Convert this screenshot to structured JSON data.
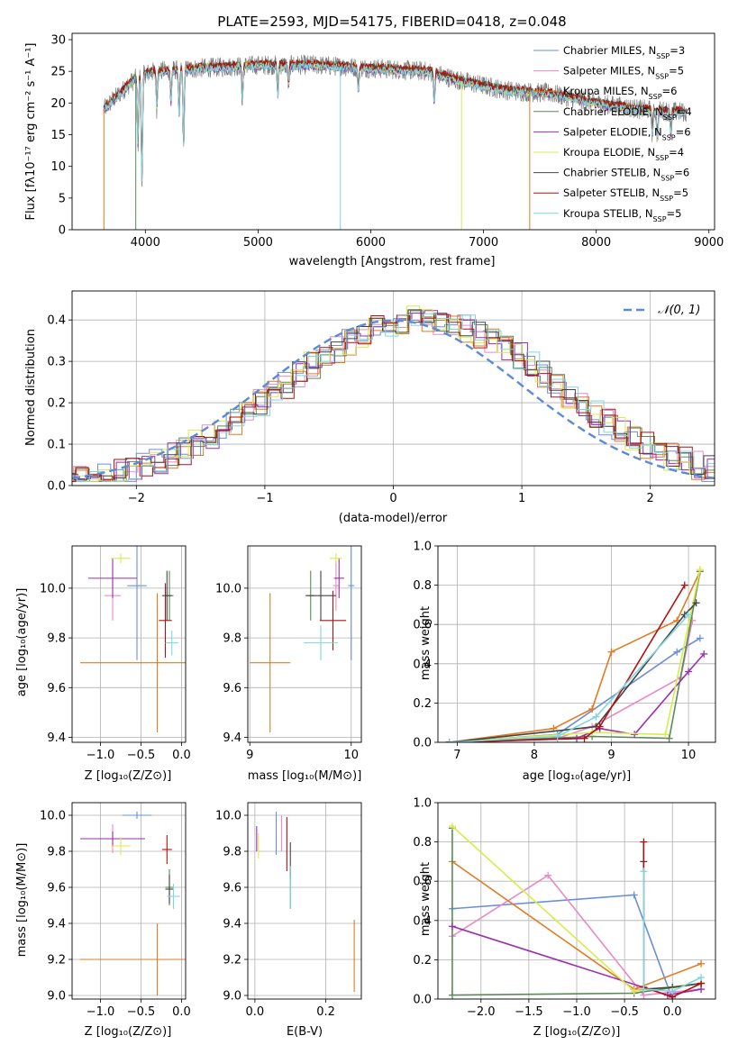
{
  "chart_data": [
    {
      "type": "line",
      "panel": "spectrum",
      "title": "PLATE=2593, MJD=54175, FIBERID=0418, z=0.048",
      "xlabel": "wavelength [Angstrom, rest frame]",
      "ylabel": "Flux [fλ10⁻¹⁷ erg cm⁻² s⁻¹ A⁻¹]",
      "xlim": [
        3350,
        9050
      ],
      "ylim": [
        0,
        31
      ],
      "xticks": [
        "4000",
        "5000",
        "6000",
        "7000",
        "8000",
        "9000"
      ],
      "yticks": [
        "0",
        "5",
        "10",
        "15",
        "20",
        "25",
        "30"
      ],
      "grid": false,
      "legend_position": "top-right",
      "series": [
        {
          "name": "Chabrier MILES, N_SSP=3",
          "color": "#6a8fd8"
        },
        {
          "name": "Salpeter MILES, N_SSP=5",
          "color": "#e88ac6"
        },
        {
          "name": "Kroupa MILES, N_SSP=6",
          "color": "#e07b22"
        },
        {
          "name": "Chabrier ELODIE, N_SSP=4",
          "color": "#5a8a5a"
        },
        {
          "name": "Salpeter ELODIE, N_SSP=6",
          "color": "#9b2fae"
        },
        {
          "name": "Kroupa ELODIE, N_SSP=4",
          "color": "#d8ec4a"
        },
        {
          "name": "Chabrier STELIB, N_SSP=6",
          "color": "#444444"
        },
        {
          "name": "Salpeter STELIB, N_SSP=5",
          "color": "#b01010"
        },
        {
          "name": "Kroupa STELIB, N_SSP=5",
          "color": "#7fd6e0"
        }
      ],
      "observed_spectrum_color": "#808080",
      "continuum": [
        {
          "x": 3630,
          "y": 19
        },
        {
          "x": 3800,
          "y": 22
        },
        {
          "x": 3950,
          "y": 24.5
        },
        {
          "x": 4100,
          "y": 25
        },
        {
          "x": 4500,
          "y": 25.5
        },
        {
          "x": 5000,
          "y": 26
        },
        {
          "x": 5500,
          "y": 26
        },
        {
          "x": 6000,
          "y": 25.5
        },
        {
          "x": 6500,
          "y": 25
        },
        {
          "x": 6800,
          "y": 23.5
        },
        {
          "x": 7200,
          "y": 22
        },
        {
          "x": 7600,
          "y": 21.5
        },
        {
          "x": 8000,
          "y": 20
        },
        {
          "x": 8400,
          "y": 19
        },
        {
          "x": 8800,
          "y": 18.5
        }
      ],
      "absorption_lines": [
        {
          "x": 3934,
          "y": 13
        },
        {
          "x": 3969,
          "y": 7
        },
        {
          "x": 4102,
          "y": 19
        },
        {
          "x": 4227,
          "y": 20
        },
        {
          "x": 4300,
          "y": 18
        },
        {
          "x": 4340,
          "y": 13
        },
        {
          "x": 4861,
          "y": 20
        },
        {
          "x": 5175,
          "y": 21
        },
        {
          "x": 5270,
          "y": 23
        },
        {
          "x": 5890,
          "y": 22
        },
        {
          "x": 6563,
          "y": 20
        },
        {
          "x": 8498,
          "y": 15
        },
        {
          "x": 8542,
          "y": 14
        },
        {
          "x": 8662,
          "y": 15
        }
      ]
    },
    {
      "type": "line",
      "panel": "residual-histogram",
      "xlabel": "(data-model)/error",
      "ylabel": "Normed distribution",
      "xlim": [
        -2.5,
        2.5
      ],
      "ylim": [
        0,
        0.47
      ],
      "xticks": [
        "−2",
        "−1",
        "0",
        "1",
        "2"
      ],
      "yticks": [
        "0.0",
        "0.1",
        "0.2",
        "0.3",
        "0.4"
      ],
      "grid": true,
      "legend_position": "top-right",
      "reference_curve": {
        "name": "𝒩(0, 1)",
        "color": "#5b8bd8",
        "dashed": true,
        "mean": 0,
        "sigma": 1
      },
      "histogram": {
        "bin_width": 0.1,
        "offset": 0.2,
        "amplitude": 0.4,
        "noise": 0.035
      }
    },
    {
      "type": "scatter",
      "panel": "age-vs-Z",
      "xlabel": "Z [log₁₀(Z/Z⊙)]",
      "ylabel": "age  [log₁₀(age/yr)]",
      "xlim": [
        -1.35,
        0.05
      ],
      "ylim": [
        9.38,
        10.17
      ],
      "xticks": [
        "−1.0",
        "−0.5",
        "0.0"
      ],
      "yticks": [
        "9.4",
        "9.6",
        "9.8",
        "10.0"
      ],
      "grid": true,
      "points": [
        {
          "x": -0.55,
          "y": 10.01,
          "xerr": 0.12,
          "yerr": 0.3,
          "color": "#6a8fd8"
        },
        {
          "x": -0.85,
          "y": 9.97,
          "xerr": 0.1,
          "yerr": 0.1,
          "color": "#e88ac6"
        },
        {
          "x": -0.3,
          "y": 9.7,
          "xerr": 0.95,
          "yerr": 0.28,
          "color": "#e07b22"
        },
        {
          "x": -0.15,
          "y": 9.97,
          "xerr": 0.05,
          "yerr": 0.1,
          "color": "#5a8a5a"
        },
        {
          "x": -0.85,
          "y": 10.04,
          "xerr": 0.3,
          "yerr": 0.08,
          "color": "#9b2fae"
        },
        {
          "x": -0.75,
          "y": 10.12,
          "xerr": 0.12,
          "yerr": 0.02,
          "color": "#d8ec4a"
        },
        {
          "x": -0.18,
          "y": 9.97,
          "xerr": 0.06,
          "yerr": 0.1,
          "color": "#444444"
        },
        {
          "x": -0.2,
          "y": 9.87,
          "xerr": 0.08,
          "yerr": 0.15,
          "color": "#b01010"
        },
        {
          "x": -0.12,
          "y": 9.78,
          "xerr": 0.08,
          "yerr": 0.05,
          "color": "#7fd6e0"
        }
      ]
    },
    {
      "type": "scatter",
      "panel": "age-vs-mass",
      "xlabel": "mass [log₁₀(M/M⊙)]",
      "ylabel": "",
      "xlim": [
        8.98,
        10.1
      ],
      "ylim": [
        9.38,
        10.17
      ],
      "xticks": [
        "9",
        "10"
      ],
      "yticks": [
        "9.4",
        "9.6",
        "9.8",
        "10.0"
      ],
      "grid": true,
      "points": [
        {
          "x": 10.0,
          "y": 10.01,
          "xerr": 0.03,
          "yerr": 0.3,
          "color": "#6a8fd8"
        },
        {
          "x": 9.85,
          "y": 10.01,
          "xerr": 0.03,
          "yerr": 0.1,
          "color": "#e88ac6"
        },
        {
          "x": 9.2,
          "y": 9.7,
          "xerr": 0.2,
          "yerr": 0.28,
          "color": "#e07b22"
        },
        {
          "x": 9.6,
          "y": 9.97,
          "xerr": 0.03,
          "yerr": 0.1,
          "color": "#5a8a5a"
        },
        {
          "x": 9.88,
          "y": 10.04,
          "xerr": 0.05,
          "yerr": 0.08,
          "color": "#9b2fae"
        },
        {
          "x": 9.85,
          "y": 10.12,
          "xerr": 0.06,
          "yerr": 0.02,
          "color": "#d8ec4a"
        },
        {
          "x": 9.7,
          "y": 9.97,
          "xerr": 0.15,
          "yerr": 0.1,
          "color": "#444444"
        },
        {
          "x": 9.82,
          "y": 9.87,
          "xerr": 0.13,
          "yerr": 0.12,
          "color": "#b01010"
        },
        {
          "x": 9.7,
          "y": 9.78,
          "xerr": 0.17,
          "yerr": 0.07,
          "color": "#7fd6e0"
        }
      ]
    },
    {
      "type": "line",
      "panel": "mass-weight-vs-age",
      "xlabel": "age  [log₁₀(age/yr)]",
      "ylabel": "mass weight",
      "xlim": [
        6.75,
        10.35
      ],
      "ylim": [
        0,
        1.0
      ],
      "xticks": [
        "7",
        "8",
        "9",
        "10"
      ],
      "yticks": [
        "0.0",
        "0.2",
        "0.4",
        "0.6",
        "0.8",
        "1.0"
      ],
      "grid": true,
      "series": [
        {
          "color": "#6a8fd8",
          "x": [
            6.9,
            8.3,
            9.85,
            10.15
          ],
          "y": [
            0.0,
            0.04,
            0.46,
            0.53
          ]
        },
        {
          "color": "#e88ac6",
          "x": [
            6.9,
            8.3,
            8.75,
            9.9,
            10.05
          ],
          "y": [
            0.0,
            0.02,
            0.08,
            0.33,
            0.62
          ]
        },
        {
          "color": "#e07b22",
          "x": [
            6.9,
            8.25,
            8.75,
            9.0,
            9.85,
            10.15
          ],
          "y": [
            0.0,
            0.07,
            0.17,
            0.46,
            0.62,
            0.87
          ]
        },
        {
          "color": "#5a8a5a",
          "x": [
            6.9,
            8.75,
            9.75,
            10.15
          ],
          "y": [
            0.0,
            0.03,
            0.02,
            0.87
          ]
        },
        {
          "color": "#9b2fae",
          "x": [
            6.9,
            8.55,
            8.85,
            9.3,
            10.0,
            10.2
          ],
          "y": [
            0.0,
            0.02,
            0.07,
            0.04,
            0.36,
            0.45
          ]
        },
        {
          "color": "#d8ec4a",
          "x": [
            6.9,
            8.75,
            9.7,
            10.15
          ],
          "y": [
            0.0,
            0.05,
            0.04,
            0.88
          ]
        },
        {
          "color": "#444444",
          "x": [
            6.9,
            8.8,
            9.95,
            10.1
          ],
          "y": [
            0.0,
            0.08,
            0.65,
            0.71
          ]
        },
        {
          "color": "#b01010",
          "x": [
            6.9,
            8.65,
            8.85,
            9.95
          ],
          "y": [
            0.0,
            0.02,
            0.08,
            0.8
          ]
        },
        {
          "color": "#7fd6e0",
          "x": [
            6.9,
            8.3,
            8.8,
            10.0
          ],
          "y": [
            0.0,
            0.03,
            0.13,
            0.65
          ]
        }
      ]
    },
    {
      "type": "scatter",
      "panel": "mass-vs-Z",
      "xlabel": "Z [log₁₀(Z/Z⊙)]",
      "ylabel": "mass [log₁₀(M/M⊙)]",
      "xlim": [
        -1.35,
        0.05
      ],
      "ylim": [
        8.98,
        10.07
      ],
      "xticks": [
        "−1.0",
        "−0.5",
        "0.0"
      ],
      "yticks": [
        "9.0",
        "9.2",
        "9.4",
        "9.6",
        "9.8",
        "10.0"
      ],
      "grid": true,
      "points": [
        {
          "x": -0.55,
          "y": 10.0,
          "xerr": 0.18,
          "yerr": 0.02,
          "color": "#6a8fd8"
        },
        {
          "x": -0.85,
          "y": 9.87,
          "xerr": 0.08,
          "yerr": 0.08,
          "color": "#e88ac6"
        },
        {
          "x": -0.3,
          "y": 9.2,
          "xerr": 0.95,
          "yerr": 0.2,
          "color": "#e07b22"
        },
        {
          "x": -0.15,
          "y": 9.6,
          "xerr": 0.05,
          "yerr": 0.1,
          "color": "#5a8a5a"
        },
        {
          "x": -0.85,
          "y": 9.87,
          "xerr": 0.4,
          "yerr": 0.04,
          "color": "#9b2fae"
        },
        {
          "x": -0.75,
          "y": 9.83,
          "xerr": 0.12,
          "yerr": 0.05,
          "color": "#d8ec4a"
        },
        {
          "x": -0.15,
          "y": 9.59,
          "xerr": 0.05,
          "yerr": 0.08,
          "color": "#444444"
        },
        {
          "x": -0.18,
          "y": 9.81,
          "xerr": 0.06,
          "yerr": 0.08,
          "color": "#b01010"
        },
        {
          "x": -0.1,
          "y": 9.55,
          "xerr": 0.08,
          "yerr": 0.07,
          "color": "#7fd6e0"
        }
      ]
    },
    {
      "type": "scatter",
      "panel": "mass-vs-EBV",
      "xlabel": "E(B-V)",
      "ylabel": "",
      "xlim": [
        -0.02,
        0.3
      ],
      "ylim": [
        8.98,
        10.07
      ],
      "xticks": [
        "0.0",
        "0.2"
      ],
      "yticks": [
        "9.0",
        "9.2",
        "9.4",
        "9.6",
        "9.8",
        "10.0"
      ],
      "grid": true,
      "points": [
        {
          "x": 0.06,
          "y": 9.9,
          "xerr": 0,
          "yerr": 0.12,
          "color": "#6a8fd8"
        },
        {
          "x": 0.075,
          "y": 9.9,
          "xerr": 0,
          "yerr": 0.1,
          "color": "#e88ac6"
        },
        {
          "x": 0.28,
          "y": 9.22,
          "xerr": 0,
          "yerr": 0.2,
          "color": "#e07b22"
        },
        {
          "x": 0.1,
          "y": 9.6,
          "xerr": 0,
          "yerr": 0.12,
          "color": "#5a8a5a"
        },
        {
          "x": 0.005,
          "y": 9.87,
          "xerr": 0,
          "yerr": 0.07,
          "color": "#9b2fae"
        },
        {
          "x": 0.01,
          "y": 9.83,
          "xerr": 0,
          "yerr": 0.07,
          "color": "#d8ec4a"
        },
        {
          "x": 0.1,
          "y": 9.75,
          "xerr": 0,
          "yerr": 0.1,
          "color": "#444444"
        },
        {
          "x": 0.09,
          "y": 9.84,
          "xerr": 0,
          "yerr": 0.15,
          "color": "#b01010"
        },
        {
          "x": 0.1,
          "y": 9.6,
          "xerr": 0,
          "yerr": 0.12,
          "color": "#7fd6e0"
        }
      ]
    },
    {
      "type": "line",
      "panel": "mass-weight-vs-Z",
      "xlabel": "Z [log₁₀(Z/Z⊙)]",
      "ylabel": "mass weight",
      "xlim": [
        -2.45,
        0.45
      ],
      "ylim": [
        0,
        1.0
      ],
      "xticks": [
        "−2.0",
        "−1.5",
        "−1.0",
        "−0.5",
        "0.0"
      ],
      "yticks": [
        "0.0",
        "0.2",
        "0.4",
        "0.6",
        "0.8",
        "1.0"
      ],
      "grid": true,
      "series": [
        {
          "color": "#6a8fd8",
          "x": [
            -2.3,
            -0.4,
            0.0
          ],
          "y": [
            0.46,
            0.53,
            0.0
          ]
        },
        {
          "color": "#e88ac6",
          "x": [
            -2.3,
            -1.3,
            -0.3,
            0.3
          ],
          "y": [
            0.32,
            0.63,
            0.02,
            0.05
          ]
        },
        {
          "color": "#e07b22",
          "x": [
            -2.3,
            -0.4,
            0.3
          ],
          "y": [
            0.7,
            0.05,
            0.18
          ]
        },
        {
          "color": "#5a8a5a",
          "x": [
            -2.3,
            -2.3,
            -0.4,
            0.3
          ],
          "y": [
            0.87,
            0.02,
            0.03,
            0.08
          ]
        },
        {
          "color": "#9b2fae",
          "x": [
            -2.3,
            -0.05,
            0.3
          ],
          "y": [
            0.37,
            0.02,
            0.05
          ]
        },
        {
          "color": "#d8ec4a",
          "x": [
            -2.3,
            -0.4,
            0.3
          ],
          "y": [
            0.88,
            0.04,
            0.08
          ]
        },
        {
          "color": "#444444",
          "x": [
            -0.3,
            -0.3,
            0.0,
            0.3
          ],
          "y": [
            0.7,
            0.05,
            0.06,
            0.08
          ]
        },
        {
          "color": "#b01010",
          "x": [
            -0.3,
            -0.3,
            0.0,
            0.3
          ],
          "y": [
            0.8,
            0.06,
            0.01,
            0.08
          ]
        },
        {
          "color": "#7fd6e0",
          "x": [
            -0.3,
            -0.3,
            0.0,
            0.3
          ],
          "y": [
            0.65,
            0.05,
            0.04,
            0.11
          ]
        }
      ]
    }
  ]
}
